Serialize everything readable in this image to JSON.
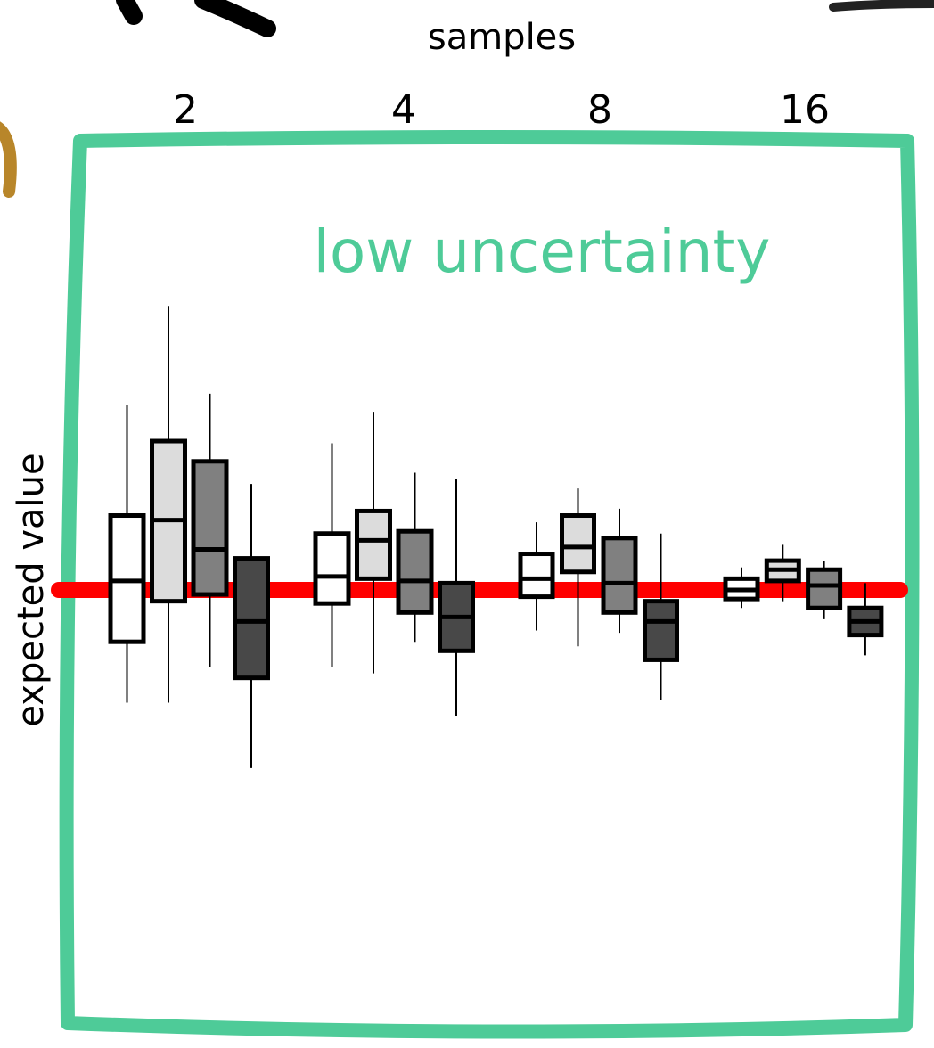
{
  "colors": {
    "frame": "#4ecb98",
    "reference_line": "#ff0000",
    "box_outline": "#000000",
    "fragment_brown": "#b8862a"
  },
  "chart_data": {
    "type": "box",
    "title": "low uncertainty",
    "xlabel": "samples",
    "ylabel": "expected value",
    "x_axis_position": "top",
    "categories": [
      "2",
      "4",
      "8",
      "16"
    ],
    "box_fills": [
      "#ffffff",
      "#dcdcdc",
      "#808080",
      "#484848"
    ],
    "reference_line": {
      "value": 0
    },
    "ylim": [
      -1.9,
      1.55
    ],
    "groups": [
      {
        "category": "2",
        "boxes": [
          {
            "whisker_low": -0.5,
            "q1": -0.23,
            "median": 0.04,
            "q3": 0.33,
            "whisker_high": 0.82
          },
          {
            "whisker_low": -0.5,
            "q1": -0.05,
            "median": 0.31,
            "q3": 0.66,
            "whisker_high": 1.26
          },
          {
            "whisker_low": -0.34,
            "q1": -0.02,
            "median": 0.18,
            "q3": 0.57,
            "whisker_high": 0.87
          },
          {
            "whisker_low": -0.79,
            "q1": -0.39,
            "median": -0.14,
            "q3": 0.14,
            "whisker_high": 0.47
          }
        ]
      },
      {
        "category": "4",
        "boxes": [
          {
            "whisker_low": -0.34,
            "q1": -0.06,
            "median": 0.06,
            "q3": 0.25,
            "whisker_high": 0.65
          },
          {
            "whisker_low": -0.37,
            "q1": 0.05,
            "median": 0.22,
            "q3": 0.35,
            "whisker_high": 0.79
          },
          {
            "whisker_low": -0.23,
            "q1": -0.1,
            "median": 0.04,
            "q3": 0.26,
            "whisker_high": 0.52
          },
          {
            "whisker_low": -0.56,
            "q1": -0.27,
            "median": -0.12,
            "q3": 0.03,
            "whisker_high": 0.49
          }
        ]
      },
      {
        "category": "8",
        "boxes": [
          {
            "whisker_low": -0.18,
            "q1": -0.03,
            "median": 0.05,
            "q3": 0.16,
            "whisker_high": 0.3
          },
          {
            "whisker_low": -0.25,
            "q1": 0.08,
            "median": 0.19,
            "q3": 0.33,
            "whisker_high": 0.45
          },
          {
            "whisker_low": -0.19,
            "q1": -0.1,
            "median": 0.03,
            "q3": 0.23,
            "whisker_high": 0.36
          },
          {
            "whisker_low": -0.49,
            "q1": -0.31,
            "median": -0.14,
            "q3": -0.05,
            "whisker_high": 0.25
          }
        ]
      },
      {
        "category": "16",
        "boxes": [
          {
            "whisker_low": -0.08,
            "q1": -0.04,
            "median": 0.0,
            "q3": 0.05,
            "whisker_high": 0.1
          },
          {
            "whisker_low": -0.05,
            "q1": 0.04,
            "median": 0.09,
            "q3": 0.13,
            "whisker_high": 0.2
          },
          {
            "whisker_low": -0.13,
            "q1": -0.08,
            "median": 0.02,
            "q3": 0.09,
            "whisker_high": 0.13
          },
          {
            "whisker_low": -0.29,
            "q1": -0.2,
            "median": -0.14,
            "q3": -0.08,
            "whisker_high": 0.03
          }
        ]
      }
    ]
  }
}
